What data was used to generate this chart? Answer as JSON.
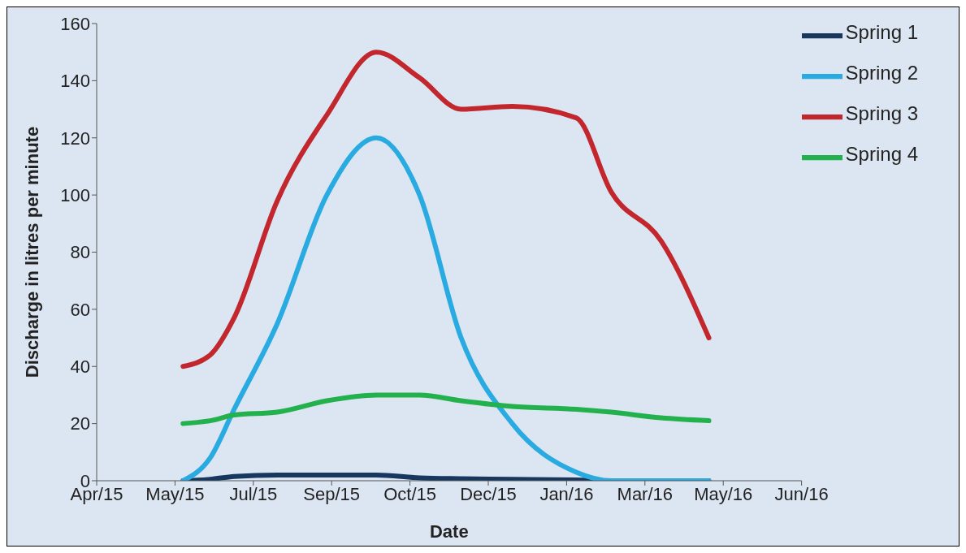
{
  "chart_data": {
    "type": "line",
    "xlabel": "Date",
    "ylabel": "Discharge in litres per minute",
    "x": [
      "2015-06-03",
      "2015-06-20",
      "2015-07-05",
      "2015-08-01",
      "2015-09-01",
      "2015-10-02",
      "2015-10-29",
      "2015-11-24",
      "2015-12-26",
      "2016-02-04",
      "2016-02-26",
      "2016-03-28",
      "2016-04-27"
    ],
    "series": [
      {
        "name": "Spring 1",
        "color": "#17375e",
        "values": [
          0,
          0.5,
          1.5,
          2,
          2,
          2,
          1,
          0.7,
          0.5,
          0.3,
          0,
          0,
          0
        ]
      },
      {
        "name": "Spring 2",
        "color": "#29abe2",
        "values": [
          0,
          8,
          25,
          55,
          100,
          120,
          100,
          50,
          20,
          3,
          0,
          0,
          0
        ]
      },
      {
        "name": "Spring 3",
        "color": "#c1272d",
        "values": [
          40,
          44,
          57,
          98,
          128,
          150,
          141,
          130,
          131,
          127,
          101,
          84,
          50
        ]
      },
      {
        "name": "Spring 4",
        "color": "#22b14c",
        "values": [
          20,
          21,
          23,
          24,
          28,
          30,
          30,
          28,
          26,
          25,
          24,
          22,
          21
        ]
      }
    ],
    "xlim": [
      "2015-04-10",
      "2016-06-24"
    ],
    "xticks": [
      {
        "value": "2015-04-10",
        "label": "Apr/15"
      },
      {
        "value": "2015-05-29",
        "label": "May/15"
      },
      {
        "value": "2015-07-17",
        "label": "Jul/15"
      },
      {
        "value": "2015-09-04",
        "label": "Sep/15"
      },
      {
        "value": "2015-10-23",
        "label": "Oct/15"
      },
      {
        "value": "2015-12-11",
        "label": "Dec/15"
      },
      {
        "value": "2016-01-29",
        "label": "Jan/16"
      },
      {
        "value": "2016-03-18",
        "label": "Mar/16"
      },
      {
        "value": "2016-05-06",
        "label": "May/16"
      },
      {
        "value": "2016-06-24",
        "label": "Jun/16"
      }
    ],
    "ylim": [
      0,
      160
    ],
    "yticks": [
      0,
      20,
      40,
      60,
      80,
      100,
      120,
      140,
      160
    ],
    "grid": false,
    "legend": "top right",
    "marker": "none",
    "line_style": "solid"
  }
}
